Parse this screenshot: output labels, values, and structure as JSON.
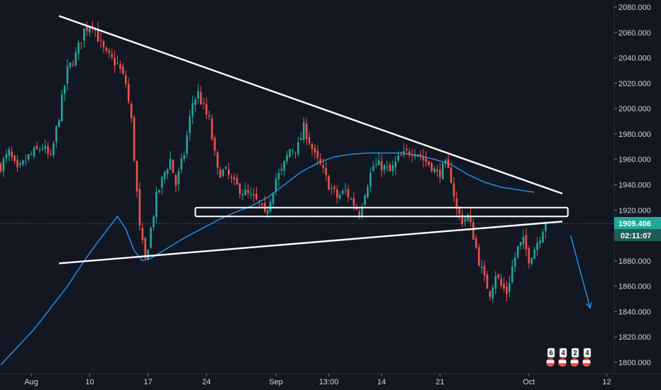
{
  "chart_data": {
    "type": "candlestick",
    "title": "",
    "xlabel": "",
    "ylabel": "",
    "ylim": [
      1795,
      2083
    ],
    "y_ticks": [
      1800,
      1820,
      1840,
      1860,
      1880,
      1900,
      1920,
      1940,
      1960,
      1980,
      2000,
      2020,
      2040,
      2060,
      2080
    ],
    "y_tick_labels": [
      "1800.000",
      "1820.000",
      "1840.000",
      "1860.000",
      "1880.000",
      "1900.000",
      "1920.000",
      "1940.000",
      "1960.000",
      "1980.000",
      "2000.000",
      "2020.000",
      "2040.000",
      "2060.000",
      "2080.000"
    ],
    "x_tick_labels": [
      "Aug",
      "10",
      "17",
      "24",
      "Sep",
      "13:00",
      "14",
      "21",
      "Oct",
      "12"
    ],
    "grid": false,
    "last_price_label": "1909.406",
    "countdown_label": "02:11:07",
    "colors": {
      "background": "#131722",
      "up": "#26a69a",
      "down": "#ef5350",
      "moving_average": "#2196f3",
      "trendlines": "#ffffff",
      "price_badge": "#26a69a",
      "axis_text": "#d1d4dc"
    },
    "anchors": [
      [
        0,
        1955
      ],
      [
        3,
        1965
      ],
      [
        6,
        1950
      ],
      [
        10,
        1962
      ],
      [
        15,
        1970
      ],
      [
        18,
        1960
      ],
      [
        24,
        2030
      ],
      [
        27,
        2042
      ],
      [
        30,
        2062
      ],
      [
        33,
        2068
      ],
      [
        36,
        2050
      ],
      [
        38,
        2042
      ],
      [
        42,
        2035
      ],
      [
        45,
        2020
      ],
      [
        47,
        1990
      ],
      [
        50,
        1905
      ],
      [
        52,
        1880
      ],
      [
        54,
        1905
      ],
      [
        56,
        1930
      ],
      [
        59,
        1950
      ],
      [
        61,
        1960
      ],
      [
        63,
        1940
      ],
      [
        66,
        1965
      ],
      [
        69,
        2005
      ],
      [
        71,
        2012
      ],
      [
        73,
        2000
      ],
      [
        75,
        1990
      ],
      [
        78,
        1950
      ],
      [
        81,
        1950
      ],
      [
        84,
        1940
      ],
      [
        87,
        1935
      ],
      [
        90,
        1930
      ],
      [
        93,
        1925
      ],
      [
        95,
        1915
      ],
      [
        97,
        1930
      ],
      [
        99,
        1945
      ],
      [
        101,
        1950
      ],
      [
        104,
        1968
      ],
      [
        107,
        1970
      ],
      [
        109,
        1985
      ],
      [
        111,
        1975
      ],
      [
        113,
        1962
      ],
      [
        115,
        1955
      ],
      [
        118,
        1940
      ],
      [
        121,
        1930
      ],
      [
        124,
        1935
      ],
      [
        127,
        1925
      ],
      [
        129,
        1918
      ],
      [
        131,
        1935
      ],
      [
        134,
        1955
      ],
      [
        137,
        1955
      ],
      [
        140,
        1950
      ],
      [
        143,
        1960
      ],
      [
        146,
        1965
      ],
      [
        149,
        1968
      ],
      [
        152,
        1960
      ],
      [
        155,
        1955
      ],
      [
        157,
        1948
      ],
      [
        160,
        1955
      ],
      [
        162,
        1945
      ],
      [
        164,
        1920
      ],
      [
        166,
        1912
      ],
      [
        168,
        1915
      ],
      [
        170,
        1900
      ],
      [
        172,
        1880
      ],
      [
        174,
        1865
      ],
      [
        176,
        1855
      ],
      [
        178,
        1870
      ],
      [
        180,
        1860
      ],
      [
        182,
        1855
      ],
      [
        184,
        1875
      ],
      [
        186,
        1890
      ],
      [
        188,
        1895
      ],
      [
        190,
        1882
      ],
      [
        192,
        1890
      ],
      [
        194,
        1900
      ],
      [
        196,
        1912
      ]
    ],
    "moving_average_points": [
      [
        0,
        1798
      ],
      [
        6,
        1812
      ],
      [
        12,
        1826
      ],
      [
        18,
        1843
      ],
      [
        24,
        1860
      ],
      [
        30,
        1880
      ],
      [
        36,
        1898
      ],
      [
        42,
        1915
      ],
      [
        45,
        1905
      ],
      [
        48,
        1888
      ],
      [
        51,
        1880
      ],
      [
        54,
        1882
      ],
      [
        57,
        1886
      ],
      [
        60,
        1890
      ],
      [
        66,
        1898
      ],
      [
        72,
        1905
      ],
      [
        78,
        1912
      ],
      [
        84,
        1918
      ],
      [
        90,
        1923
      ],
      [
        96,
        1930
      ],
      [
        102,
        1940
      ],
      [
        108,
        1950
      ],
      [
        114,
        1957
      ],
      [
        120,
        1962
      ],
      [
        126,
        1964
      ],
      [
        132,
        1965
      ],
      [
        138,
        1965
      ],
      [
        144,
        1965
      ],
      [
        150,
        1963
      ],
      [
        156,
        1960
      ],
      [
        162,
        1956
      ],
      [
        168,
        1948
      ],
      [
        174,
        1942
      ],
      [
        180,
        1938
      ],
      [
        186,
        1936
      ],
      [
        192,
        1934
      ]
    ],
    "annotations": [
      {
        "type": "trendline",
        "name": "upper-descending-trendline",
        "from": [
          21,
          2073
        ],
        "to": [
          202,
          1933
        ]
      },
      {
        "type": "trendline",
        "name": "lower-ascending-trendline",
        "from": [
          21,
          1878
        ],
        "to": [
          202,
          1911
        ]
      },
      {
        "type": "zone",
        "name": "support-resistance-zone",
        "from": [
          70,
          1922
        ],
        "to": [
          204,
          1915
        ]
      },
      {
        "type": "arrow",
        "name": "projection-arrow",
        "from": [
          205,
          1900
        ],
        "to": [
          212,
          1843
        ]
      }
    ],
    "events": {
      "badges": [
        "6",
        "4",
        "2",
        "4"
      ]
    }
  }
}
